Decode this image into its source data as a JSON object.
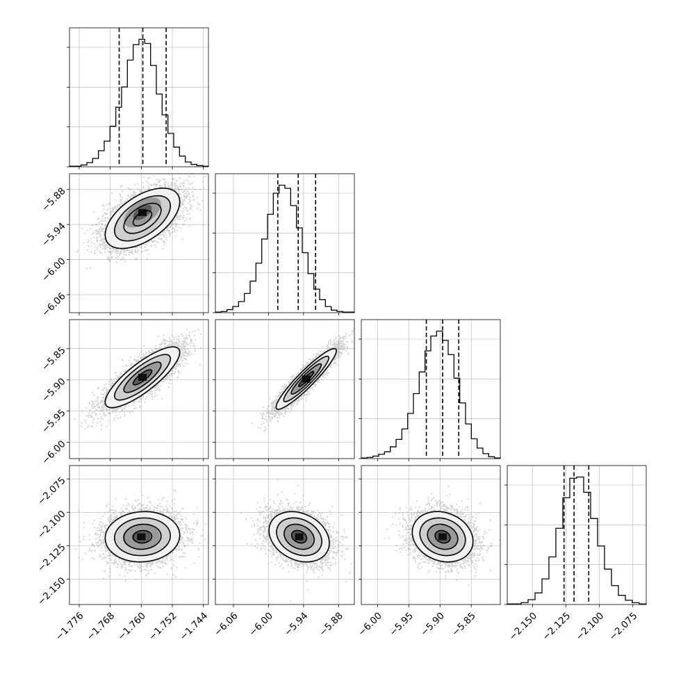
{
  "chart_data": {
    "type": "corner",
    "grid": true,
    "colors": {
      "line": "#000000",
      "grid": "#b0b0b0",
      "scatter": "#808080",
      "background": "#ffffff"
    },
    "parameters": [
      {
        "range": [
          -1.7785,
          -1.7427
        ],
        "ticks": [
          -1.776,
          -1.768,
          -1.76,
          -1.752,
          -1.744
        ],
        "tick_labels": [
          "−1.776",
          "−1.768",
          "−1.760",
          "−1.752",
          "−1.744"
        ]
      },
      {
        "range": [
          -6.0909,
          -5.853
        ],
        "ticks": [
          -6.06,
          -6.0,
          -5.94,
          -5.88
        ],
        "tick_labels": [
          "−6.06",
          "−6.00",
          "−5.94",
          "−5.88"
        ]
      },
      {
        "range": [
          -6.026,
          -5.8035
        ],
        "ticks": [
          -6.0,
          -5.95,
          -5.9,
          -5.85
        ],
        "tick_labels": [
          "−6.00",
          "−5.95",
          "−5.90",
          "−5.85"
        ]
      },
      {
        "range": [
          -2.169,
          -2.065
        ],
        "ticks": [
          -2.15,
          -2.125,
          -2.1,
          -2.075
        ],
        "tick_labels": [
          "−2.150",
          "−2.125",
          "−2.100",
          "−2.075"
        ]
      }
    ],
    "histograms": [
      {
        "param": 0,
        "quantiles": [
          -1.7657,
          -1.7596,
          -1.7536
        ],
        "counts": [
          1,
          1,
          3,
          7,
          14,
          27,
          43,
          68,
          100,
          134,
          179,
          205,
          214,
          207,
          170,
          122,
          87,
          56,
          33,
          18,
          8,
          4,
          2,
          1
        ]
      },
      {
        "param": 1,
        "quantiles": [
          -5.9841,
          -5.9491,
          -5.9194
        ],
        "counts": [
          1,
          2,
          5,
          10,
          18,
          31,
          51,
          80,
          119,
          159,
          193,
          206,
          201,
          173,
          137,
          97,
          63,
          38,
          21,
          10,
          4,
          2,
          1,
          1
        ]
      },
      {
        "param": 2,
        "quantiles": [
          -5.9219,
          -5.8958,
          -5.87
        ],
        "counts": [
          1,
          2,
          4,
          7,
          11,
          19,
          31,
          48,
          73,
          105,
          140,
          174,
          198,
          206,
          191,
          168,
          130,
          90,
          56,
          32,
          17,
          8,
          3,
          1
        ]
      },
      {
        "param": 3,
        "quantiles": [
          -2.1265,
          -2.119,
          -2.108
        ],
        "counts": [
          1,
          1,
          3,
          8,
          19,
          42,
          78,
          125,
          175,
          207,
          209,
          184,
          141,
          96,
          58,
          31,
          15,
          7,
          3,
          1
        ]
      }
    ],
    "pairs": [
      {
        "x": 0,
        "y": 1,
        "center": [
          -1.7597,
          -5.9294
        ],
        "sx": 0.0048,
        "sy": 0.0258,
        "rho": 0.55,
        "peak_offset": [
          0.0,
          0.01
        ]
      },
      {
        "x": 0,
        "y": 2,
        "center": [
          -1.7597,
          -5.8958
        ],
        "sx": 0.0048,
        "sy": 0.0243,
        "rho": 0.82,
        "peak_offset": [
          0.0,
          0.0
        ]
      },
      {
        "x": 1,
        "y": 2,
        "center": [
          -5.9354,
          -5.8985
        ],
        "sx": 0.0258,
        "sy": 0.0243,
        "rho": 0.93,
        "peak_offset": [
          0.0,
          0.0
        ]
      },
      {
        "x": 0,
        "y": 3,
        "center": [
          -1.7597,
          -2.1183
        ],
        "sx": 0.0048,
        "sy": 0.0094,
        "rho": 0.06,
        "peak_offset": [
          -0.0003,
          0.0
        ]
      },
      {
        "x": 1,
        "y": 3,
        "center": [
          -5.9475,
          -2.1183
        ],
        "sx": 0.0258,
        "sy": 0.0094,
        "rho": -0.25,
        "peak_offset": [
          0.0,
          0.0
        ]
      },
      {
        "x": 2,
        "y": 3,
        "center": [
          -5.8958,
          -2.1183
        ],
        "sx": 0.0243,
        "sy": 0.0094,
        "rho": -0.18,
        "peak_offset": [
          0.0,
          0.0
        ]
      }
    ]
  }
}
